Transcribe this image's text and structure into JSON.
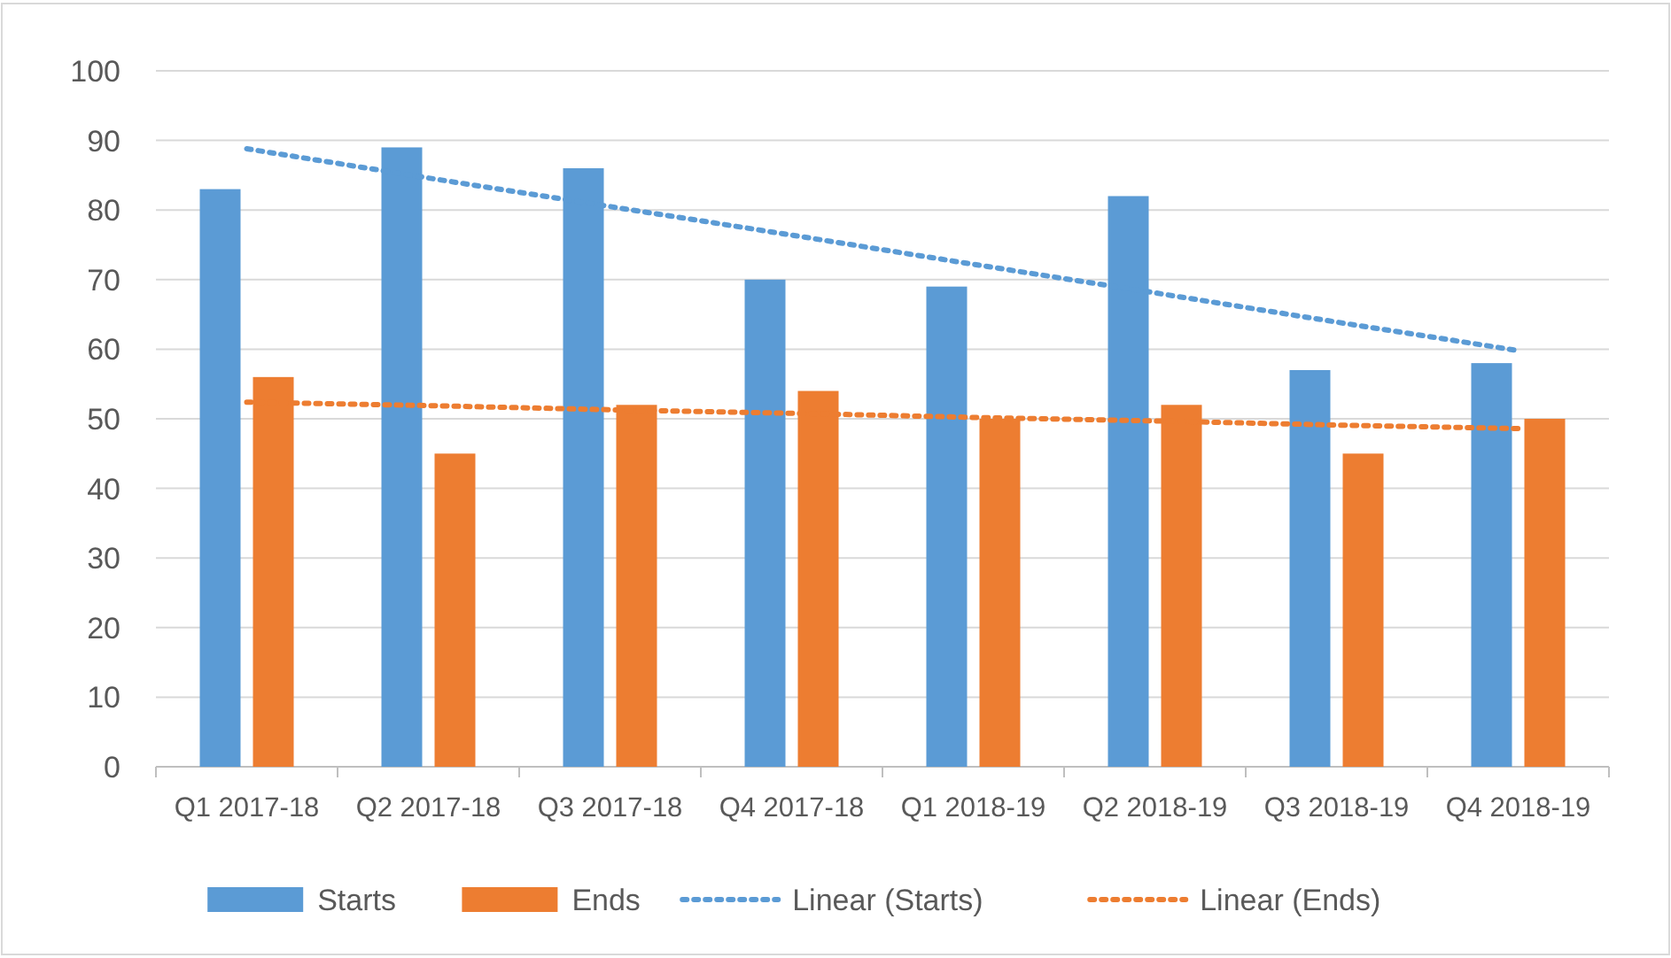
{
  "chart_data": {
    "type": "bar",
    "categories": [
      "Q1 2017-18",
      "Q2 2017-18",
      "Q3 2017-18",
      "Q4 2017-18",
      "Q1 2018-19",
      "Q2 2018-19",
      "Q3 2018-19",
      "Q4 2018-19"
    ],
    "series": [
      {
        "name": "Starts",
        "color": "#5b9bd5",
        "values": [
          83,
          89,
          86,
          70,
          69,
          82,
          57,
          58
        ]
      },
      {
        "name": "Ends",
        "color": "#ed7d31",
        "values": [
          56,
          45,
          52,
          54,
          50,
          52,
          45,
          50
        ]
      },
      {
        "name": "Linear (Starts)",
        "type": "line",
        "line_style": "dotted",
        "color": "#5b9bd5",
        "values": [
          88.8,
          84.6,
          80.5,
          76.4,
          72.2,
          68.1,
          63.9,
          59.8
        ]
      },
      {
        "name": "Linear (Ends)",
        "type": "line",
        "line_style": "dotted",
        "color": "#ed7d31",
        "values": [
          52.4,
          51.9,
          51.3,
          50.8,
          50.2,
          49.7,
          49.1,
          48.6
        ]
      }
    ],
    "ylim": [
      0,
      100
    ],
    "yticks": [
      0,
      10,
      20,
      30,
      40,
      50,
      60,
      70,
      80,
      90,
      100
    ],
    "grid": "y",
    "legend": "bottom"
  }
}
